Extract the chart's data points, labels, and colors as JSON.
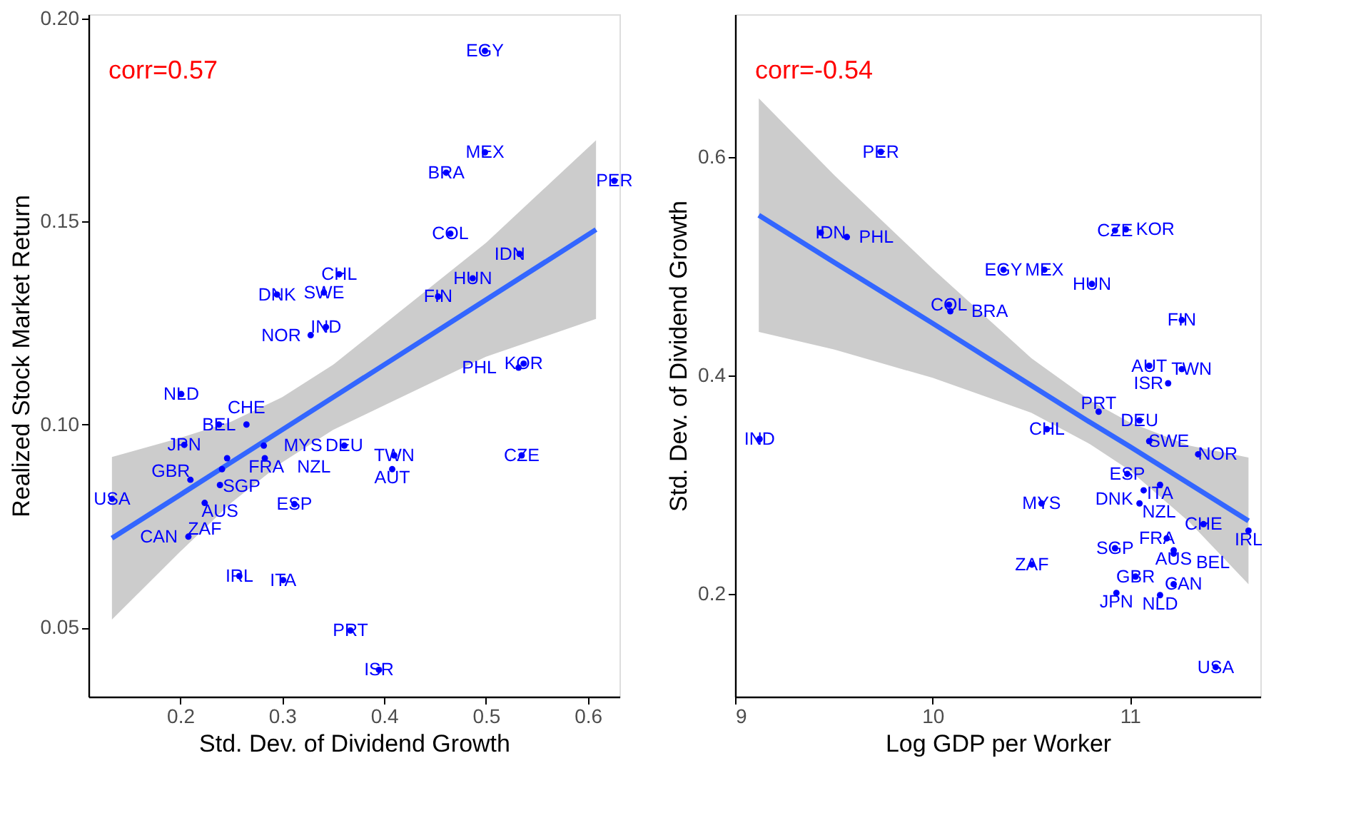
{
  "chart_data": [
    {
      "type": "scatter",
      "xlabel": "Std. Dev. of Dividend Growth",
      "ylabel": "Realized Stock Market Return",
      "xlim": [
        0.11,
        0.631
      ],
      "ylim": [
        0.033,
        0.201
      ],
      "xticks": [
        0.2,
        0.3,
        0.4,
        0.5,
        0.6
      ],
      "yticks": [
        0.05,
        {
          "value": 0.1,
          "label": "0.10"
        },
        0.15,
        {
          "value": 0.2,
          "label": "0.20"
        }
      ],
      "grid": false,
      "marker": "circle",
      "annotations": [
        "corr=0.57"
      ],
      "series": [
        {
          "type": "scatter",
          "color": "#0000ff",
          "x": [
            0.499,
            0.499,
            0.461,
            0.626,
            0.465,
            0.533,
            0.356,
            0.487,
            0.295,
            0.341,
            0.453,
            0.343,
            0.328,
            0.537,
            0.532,
            0.201,
            0.238,
            0.265,
            0.204,
            0.246,
            0.282,
            0.283,
            0.361,
            0.41,
            0.408,
            0.535,
            0.241,
            0.21,
            0.239,
            0.133,
            0.224,
            0.312,
            0.208,
            0.258,
            0.301,
            0.367,
            0.395
          ],
          "values": [
            0.192,
            0.167,
            0.162,
            0.16,
            0.147,
            0.142,
            0.137,
            0.136,
            0.132,
            0.1325,
            0.1315,
            0.124,
            0.122,
            0.115,
            0.114,
            0.1075,
            0.1,
            0.1,
            0.095,
            0.0917,
            0.0948,
            0.0917,
            0.0948,
            0.0924,
            0.089,
            0.0924,
            0.089,
            0.0864,
            0.0851,
            0.0817,
            0.0807,
            0.0804,
            0.0724,
            0.0627,
            0.0617,
            0.0493,
            0.0396
          ],
          "value_labels": [
            "EGY",
            "MEX",
            "BRA",
            "PER",
            "COL",
            "IDN",
            "CHL",
            "HUN",
            "DNK",
            "SWE",
            "FIN",
            "IND",
            "NOR",
            "KOR",
            "PHL",
            "NLD",
            "BEL",
            "CHE",
            "JPN",
            "FRA",
            "MYS",
            "NZL",
            "DEU",
            "TWN",
            "AUT",
            "CZE",
            "SGP",
            "GBR",
            "AUS",
            "USA",
            "ZAF",
            "ESP",
            "CAN",
            "IRL",
            "ITA",
            "PRT",
            "ISR"
          ]
        },
        {
          "type": "line",
          "marker": "none",
          "color": "#3366ff",
          "x": [
            0.133,
            0.2,
            0.25,
            0.3,
            0.35,
            0.4,
            0.5,
            0.608
          ],
          "values": [
            0.072,
            0.0827,
            0.0907,
            0.0987,
            0.1067,
            0.1147,
            0.1307,
            0.148
          ],
          "lower": [
            0.052,
            0.0687,
            0.0807,
            0.0907,
            0.0987,
            0.1047,
            0.1167,
            0.126
          ],
          "upper": [
            0.092,
            0.0967,
            0.1007,
            0.1067,
            0.1147,
            0.1247,
            0.1447,
            0.17
          ]
        }
      ]
    },
    {
      "type": "scatter",
      "xlabel": "Log GDP per Worker",
      "ylabel": "Std. Dev. of Dividend Growth",
      "xlim": [
        9,
        11.66
      ],
      "ylim": [
        0.106,
        0.731
      ],
      "xticks": [
        9,
        10,
        11
      ],
      "yticks": [
        0.2,
        0.4,
        0.6
      ],
      "grid": false,
      "marker": "circle",
      "annotations": [
        "corr=-0.54"
      ],
      "series": [
        {
          "type": "scatter",
          "color": "#0000ff",
          "x": [
            9.738,
            9.434,
            9.566,
            10.083,
            10.09,
            10.359,
            10.566,
            10.807,
            10.924,
            10.979,
            11.262,
            11.097,
            11.262,
            11.193,
            10.841,
            11.048,
            10.579,
            11.097,
            11.345,
            10.986,
            11.152,
            11.069,
            11.048,
            9.124,
            10.552,
            11.372,
            11.6,
            11.186,
            10.924,
            11.221,
            11.221,
            10.503,
            11.028,
            11.221,
            10.931,
            11.152,
            11.434
          ],
          "values": [
            0.605,
            0.531,
            0.527,
            0.465,
            0.459,
            0.497,
            0.497,
            0.484,
            0.533,
            0.534,
            0.451,
            0.409,
            0.406,
            0.393,
            0.367,
            0.359,
            0.351,
            0.34,
            0.328,
            0.31,
            0.3,
            0.295,
            0.283,
            0.342,
            0.283,
            0.264,
            0.258,
            0.251,
            0.242,
            0.24,
            0.237,
            0.227,
            0.216,
            0.209,
            0.201,
            0.199,
            0.133
          ],
          "value_labels": [
            "PER",
            "IDN",
            "PHL",
            "COL",
            "BRA",
            "EGY",
            "MEX",
            "HUN",
            "CZE",
            "KOR",
            "FIN",
            "AUT",
            "TWN",
            "ISR",
            "PRT",
            "DEU",
            "CHL",
            "SWE",
            "NOR",
            "ESP",
            "ITA",
            "DNK",
            "NZL",
            "IND",
            "MYS",
            "CHE",
            "IRL",
            "FRA",
            "SGP",
            "AUS",
            "BEL",
            "ZAF",
            "GBR",
            "CAN",
            "JPN",
            "NLD",
            "USA"
          ]
        },
        {
          "type": "line",
          "marker": "none",
          "color": "#3366ff",
          "x": [
            9.12,
            9.5,
            10,
            10.5,
            10.8,
            11,
            11.3,
            11.6
          ],
          "values": [
            0.547,
            0.504,
            0.448,
            0.391,
            0.357,
            0.335,
            0.301,
            0.267
          ],
          "lower": [
            0.44,
            0.424,
            0.398,
            0.366,
            0.337,
            0.313,
            0.266,
            0.209
          ],
          "upper": [
            0.654,
            0.584,
            0.498,
            0.416,
            0.377,
            0.357,
            0.336,
            0.325
          ]
        }
      ]
    }
  ]
}
